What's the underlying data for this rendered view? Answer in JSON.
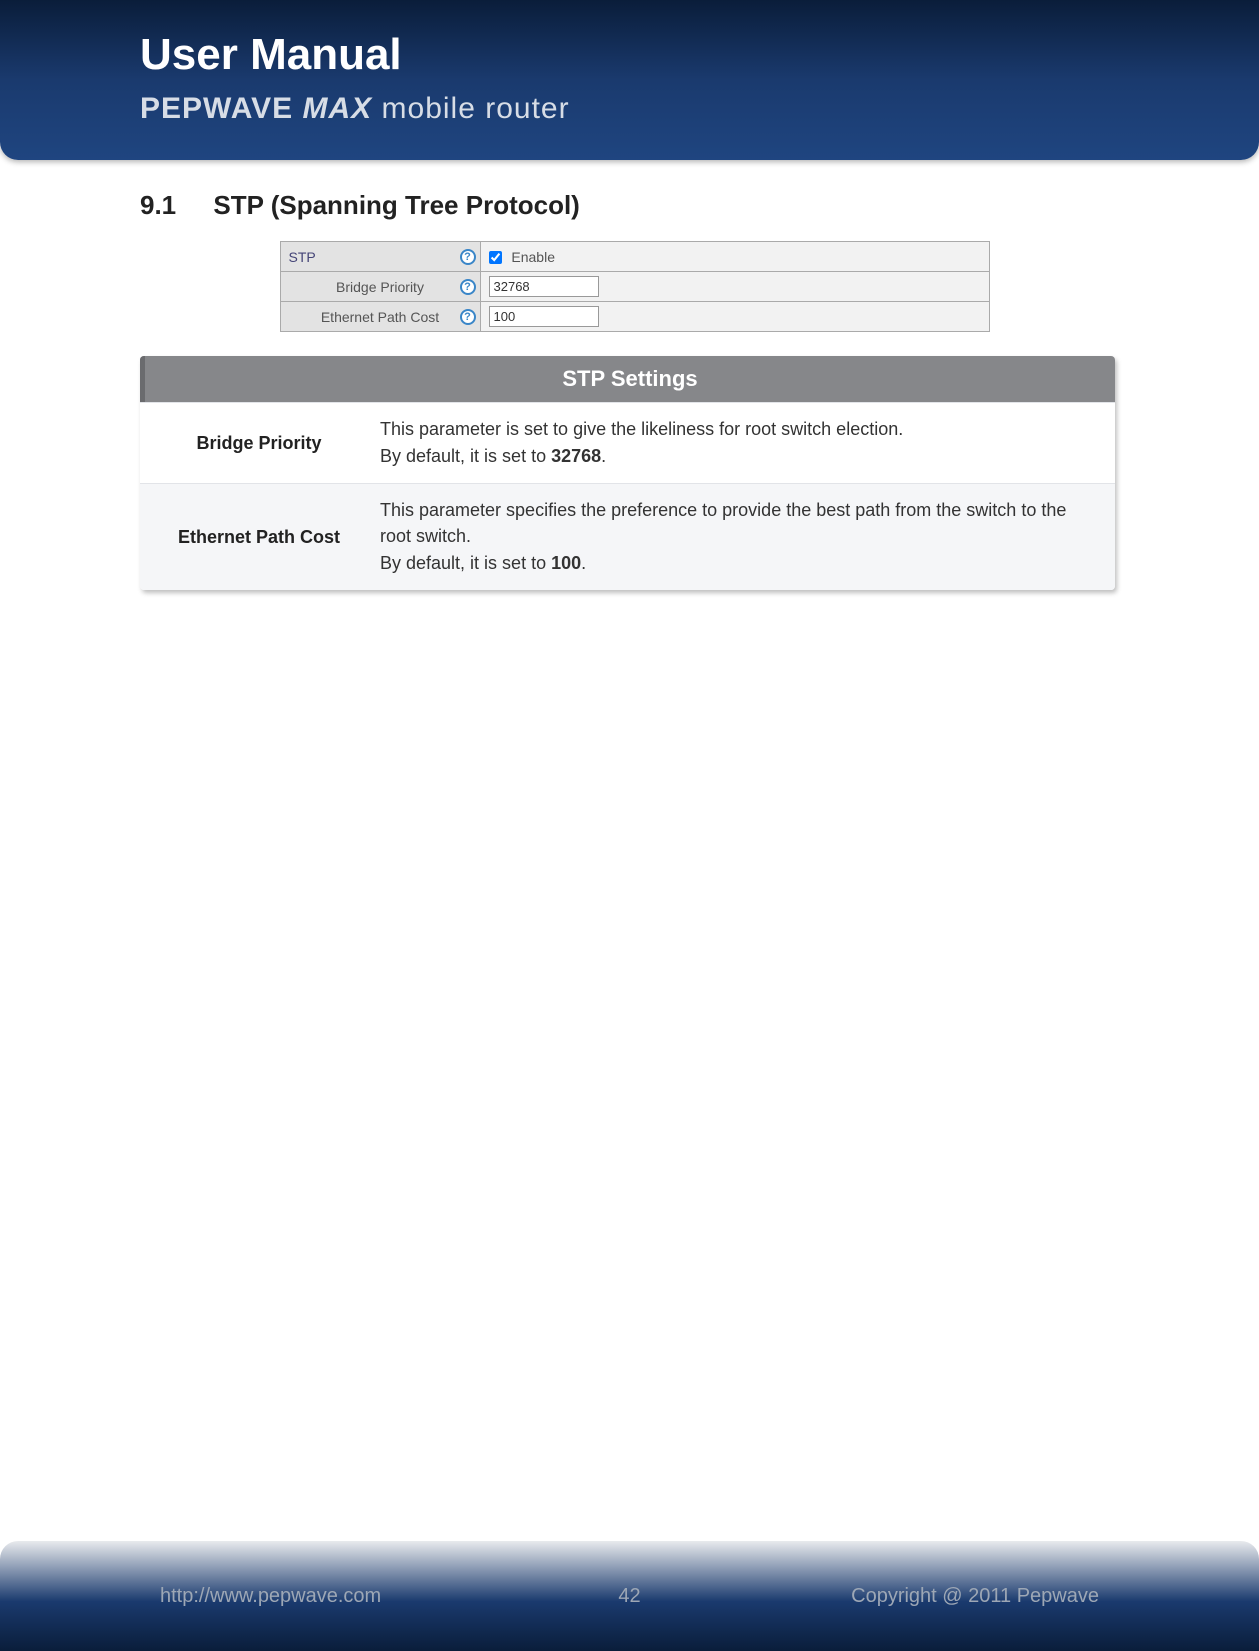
{
  "header": {
    "title": "User Manual",
    "brand": "PEPWAVE",
    "product": "MAX",
    "tagline": "mobile router"
  },
  "section": {
    "number": "9.1",
    "title": "STP (Spanning Tree Protocol)"
  },
  "config": {
    "stp_label": "STP",
    "enable_label": "Enable",
    "enable_checked": true,
    "rows": [
      {
        "label": "Bridge Priority",
        "value": "32768"
      },
      {
        "label": "Ethernet Path Cost",
        "value": "100"
      }
    ],
    "help_symbol": "?",
    "colors": {
      "label_bg": "#e3e3e3",
      "body_bg": "#f2f2f2",
      "border": "#aaaaaa",
      "help_border": "#3a86c8"
    }
  },
  "settings": {
    "title": "STP Settings",
    "header_bg": "#86878a",
    "header_text_color": "#ffffff",
    "rows": [
      {
        "key": "Bridge Priority",
        "desc_p1": "This parameter is set to give the likeliness for root switch election.",
        "desc_p2a": "By default, it is set to ",
        "default": "32768",
        "desc_p2b": "."
      },
      {
        "key": "Ethernet Path Cost",
        "desc_p1": "This parameter specifies the preference to provide the best path from the switch to the root switch.",
        "desc_p2a": "By default, it is set to ",
        "default": "100",
        "desc_p2b": "."
      }
    ]
  },
  "footer": {
    "url": "http://www.pepwave.com",
    "page": "42",
    "copyright": "Copyright @ 2011 Pepwave"
  },
  "theme": {
    "header_grad_top": "#0a1d3a",
    "header_grad_bottom": "#1f4580",
    "footer_text": "#9da7b5"
  }
}
